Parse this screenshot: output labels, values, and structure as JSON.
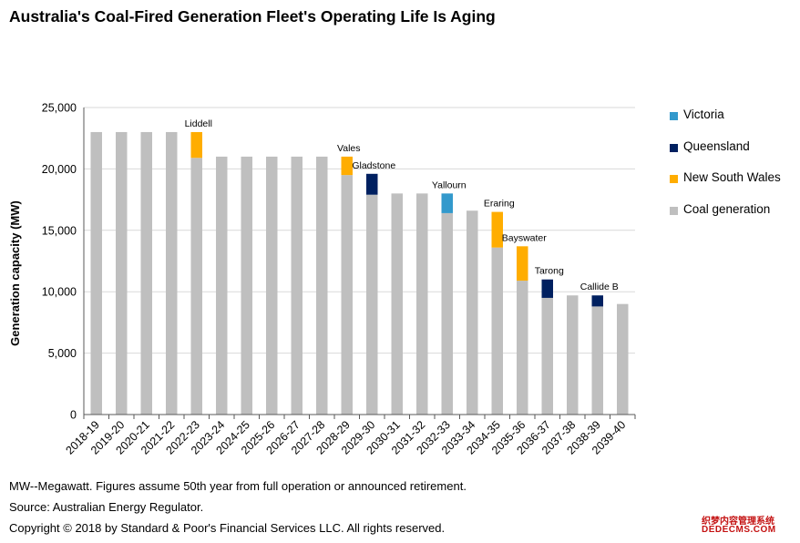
{
  "title": "Australia's Coal-Fired Generation Fleet's Operating Life Is Aging",
  "footnotes": {
    "note": "MW--Megawatt. Figures assume 50th year from full operation or announced retirement.",
    "source": "Source: Australian Energy Regulator.",
    "copyright": "Copyright © 2018 by Standard & Poor's Financial Services LLC. All rights reserved."
  },
  "watermark": {
    "line1": "织梦内容管理系统",
    "line2": "DEDECMS.COM"
  },
  "chart_data": {
    "type": "bar",
    "stacked": true,
    "title": "Australia's Coal-Fired Generation Fleet's Operating Life Is Aging",
    "ylabel": "Generation capacity (MW)",
    "xlabel": "",
    "ylim": [
      0,
      25000
    ],
    "yticks": [
      0,
      5000,
      10000,
      15000,
      20000,
      25000
    ],
    "ytick_labels": [
      "0",
      "5,000",
      "10,000",
      "15,000",
      "20,000",
      "25,000"
    ],
    "grid": true,
    "legend_position": "right",
    "categories": [
      "2018-19",
      "2019-20",
      "2020-21",
      "2021-22",
      "2022-23",
      "2023-24",
      "2024-25",
      "2025-26",
      "2026-27",
      "2027-28",
      "2028-29",
      "2029-30",
      "2030-31",
      "2031-32",
      "2032-33",
      "2033-34",
      "2034-35",
      "2035-36",
      "2036-37",
      "2037-38",
      "2038-39",
      "2039-40"
    ],
    "series": [
      {
        "name": "Coal generation",
        "color": "#bfbfbf",
        "values": [
          23000,
          23000,
          23000,
          23000,
          20900,
          21000,
          21000,
          21000,
          21000,
          21000,
          19500,
          17900,
          18000,
          18000,
          16400,
          16600,
          13600,
          10900,
          9500,
          9700,
          8800,
          9000
        ]
      },
      {
        "name": "New South Wales",
        "color": "#ffad00",
        "values": [
          0,
          0,
          0,
          0,
          2100,
          0,
          0,
          0,
          0,
          0,
          1500,
          0,
          0,
          0,
          0,
          0,
          2900,
          2800,
          0,
          0,
          0,
          0
        ]
      },
      {
        "name": "Queensland",
        "color": "#002060",
        "values": [
          0,
          0,
          0,
          0,
          0,
          0,
          0,
          0,
          0,
          0,
          0,
          1700,
          0,
          0,
          0,
          0,
          0,
          0,
          1500,
          0,
          900,
          0
        ]
      },
      {
        "name": "Victoria",
        "color": "#3399cc",
        "values": [
          0,
          0,
          0,
          0,
          0,
          0,
          0,
          0,
          0,
          0,
          0,
          0,
          0,
          0,
          1600,
          0,
          0,
          0,
          0,
          0,
          0,
          0
        ]
      }
    ],
    "legend": [
      "Victoria",
      "Queensland",
      "New South Wales",
      "Coal generation"
    ],
    "annotations": [
      {
        "category": "2022-23",
        "text": "Liddell"
      },
      {
        "category": "2028-29",
        "text": "Vales"
      },
      {
        "category": "2029-30",
        "text": "Gladstone"
      },
      {
        "category": "2032-33",
        "text": "Yallourn"
      },
      {
        "category": "2034-35",
        "text": "Eraring"
      },
      {
        "category": "2035-36",
        "text": "Bayswater"
      },
      {
        "category": "2036-37",
        "text": "Tarong"
      },
      {
        "category": "2038-39",
        "text": "Callide B"
      }
    ]
  }
}
